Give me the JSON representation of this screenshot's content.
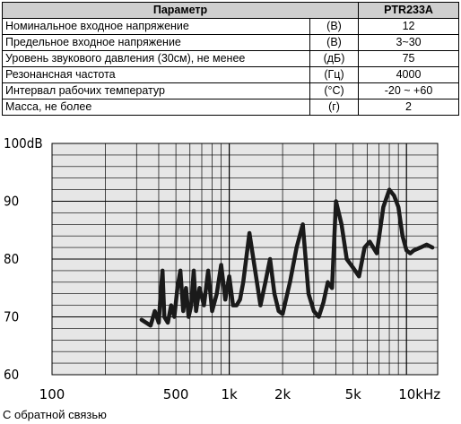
{
  "table": {
    "header": {
      "param": "Параметр",
      "model": "PTR233A"
    },
    "rows": [
      {
        "param": "Номинальное входное напряжение",
        "unit": "(В)",
        "value": "12"
      },
      {
        "param": "Предельное входное напряжение",
        "unit": "(В)",
        "value": "3~30"
      },
      {
        "param": "Уровень звукового давления (30см), не менее",
        "unit": "(дБ)",
        "value": "75"
      },
      {
        "param": "Резонансная частота",
        "unit": "(Гц)",
        "value": "4000"
      },
      {
        "param": "Интервал рабочих температур",
        "unit": "(°С)",
        "value": "-20 ~ +60"
      },
      {
        "param": "Масса, не более",
        "unit": "(г)",
        "value": "2"
      }
    ]
  },
  "chart_data": {
    "type": "line",
    "xscale": "log",
    "xlim": [
      100,
      15000
    ],
    "ylim": [
      60,
      100
    ],
    "grid": true,
    "y_tick_labels": [
      "100dB",
      "90",
      "80",
      "70",
      "60"
    ],
    "y_ticks": [
      100,
      90,
      80,
      70,
      60
    ],
    "x_tick_labels": [
      "100",
      "500",
      "1k",
      "2k",
      "5k",
      "10kHz"
    ],
    "x_ticks": [
      100,
      500,
      1000,
      2000,
      5000,
      10000
    ],
    "line_color": "#1a1a1a",
    "series": [
      {
        "x": [
          320,
          360,
          380,
          400,
          410,
          420,
          430,
          450,
          470,
          490,
          510,
          530,
          550,
          570,
          590,
          610,
          630,
          650,
          680,
          720,
          760,
          800,
          850,
          900,
          950,
          1000,
          1050,
          1100,
          1150,
          1200,
          1300,
          1400,
          1500,
          1600,
          1700,
          1800,
          1900,
          2000,
          2200,
          2400,
          2600,
          2800,
          3000,
          3200,
          3400,
          3600,
          3800,
          4000,
          4300,
          4600,
          5000,
          5400,
          5800,
          6200,
          6800,
          7400,
          8000,
          8500,
          9000,
          9500,
          10000,
          10500,
          11000,
          12000,
          13000,
          14000
        ],
        "y": [
          69.5,
          68.5,
          71,
          69,
          74,
          78,
          70,
          69,
          72,
          70,
          75,
          78,
          71,
          75,
          70,
          72,
          78,
          71,
          75,
          72,
          78,
          71,
          74,
          79,
          73,
          77,
          72,
          72,
          73,
          76,
          84.5,
          78,
          72,
          76,
          80,
          74,
          71,
          70.5,
          76,
          82,
          86,
          74,
          71,
          70,
          72.5,
          76,
          75,
          90,
          86,
          80,
          78.5,
          77,
          82,
          83,
          81,
          89,
          92,
          91,
          89,
          84,
          81.5,
          81,
          81.5,
          82,
          82.5,
          82
        ]
      }
    ]
  },
  "caption": "С обратной связью"
}
